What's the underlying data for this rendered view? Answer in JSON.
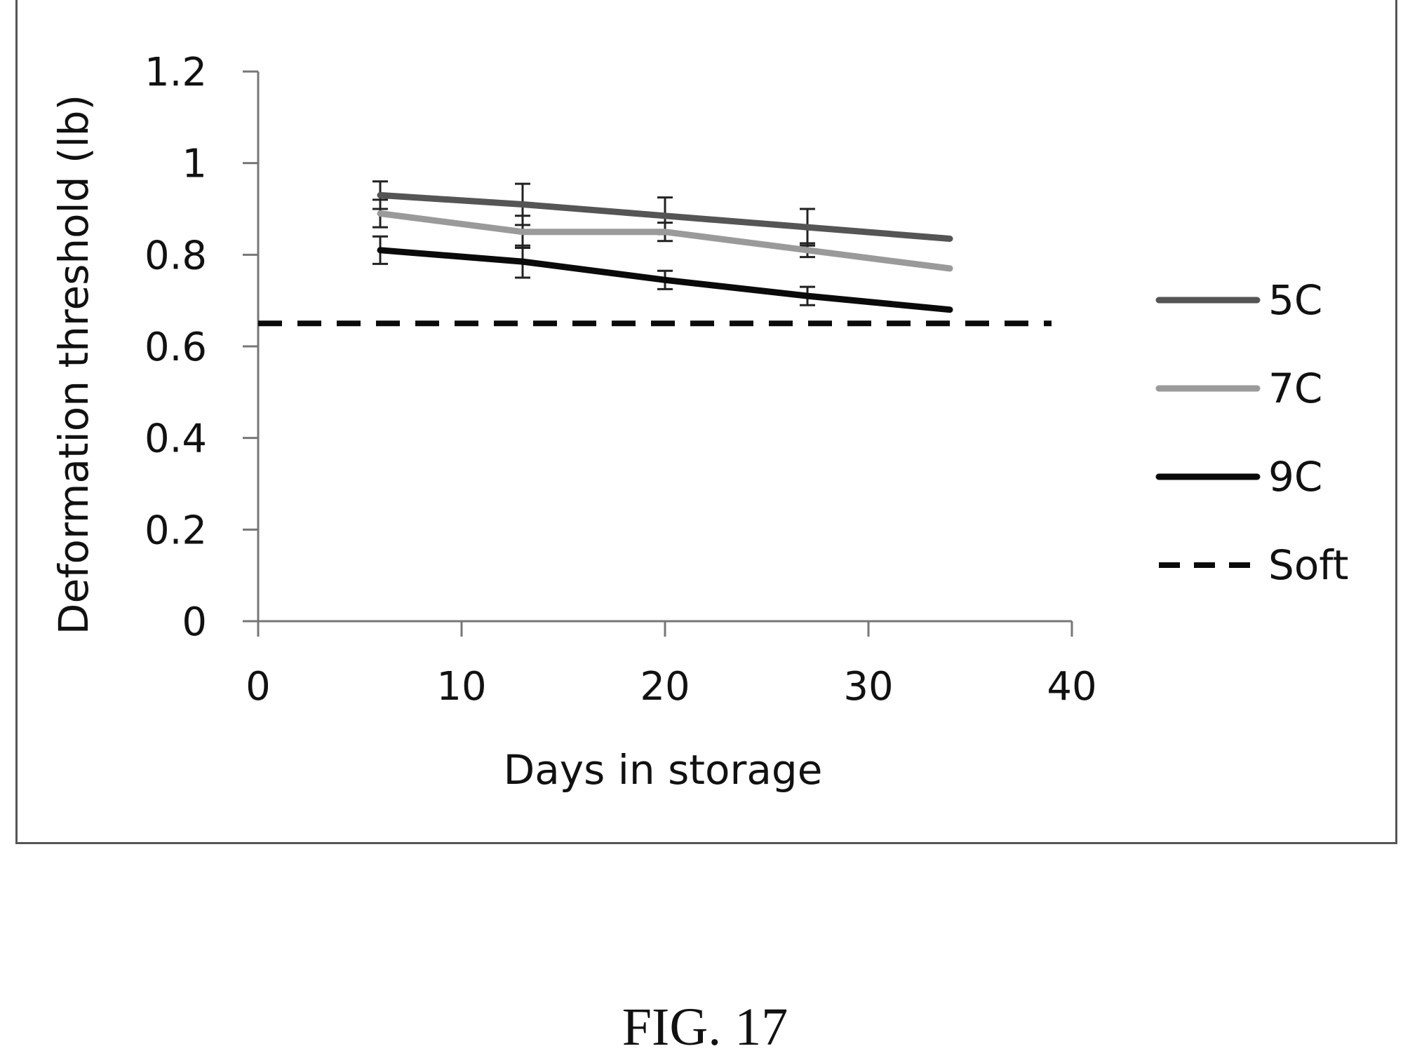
{
  "caption": "FIG. 17",
  "chart_data": {
    "type": "line",
    "xlabel": "Days in storage",
    "ylabel": "Deformation threshold (lb)",
    "xlim": [
      0,
      40
    ],
    "ylim": [
      0,
      1.2
    ],
    "xticks": [
      "0",
      "10",
      "20",
      "30",
      "40"
    ],
    "yticks": [
      "0",
      "0.2",
      "0.4",
      "0.6",
      "0.8",
      "1",
      "1.2"
    ],
    "grid": false,
    "legend_position": "right",
    "series": [
      {
        "name": "5C",
        "color": "#555555",
        "style": "solid",
        "x": [
          6,
          13,
          20,
          27,
          34
        ],
        "y": [
          0.93,
          0.91,
          0.885,
          0.86,
          0.835
        ],
        "err": [
          0.03,
          0.045,
          0.04,
          0.04,
          null
        ]
      },
      {
        "name": "7C",
        "color": "#9a9a9a",
        "style": "solid",
        "x": [
          6,
          13,
          20,
          27,
          34
        ],
        "y": [
          0.89,
          0.85,
          0.85,
          0.81,
          0.77
        ],
        "err": [
          0.03,
          0.035,
          0.02,
          0.015,
          null
        ]
      },
      {
        "name": "9C",
        "color": "#0a0a0a",
        "style": "solid",
        "x": [
          6,
          13,
          20,
          27,
          34
        ],
        "y": [
          0.81,
          0.785,
          0.745,
          0.71,
          0.68
        ],
        "err": [
          0.03,
          0.035,
          0.02,
          0.02,
          null
        ]
      },
      {
        "name": "Soft",
        "color": "#0a0a0a",
        "style": "dashed",
        "x": [
          0,
          39
        ],
        "y": [
          0.65,
          0.65
        ],
        "err": [
          null,
          null
        ]
      }
    ]
  }
}
